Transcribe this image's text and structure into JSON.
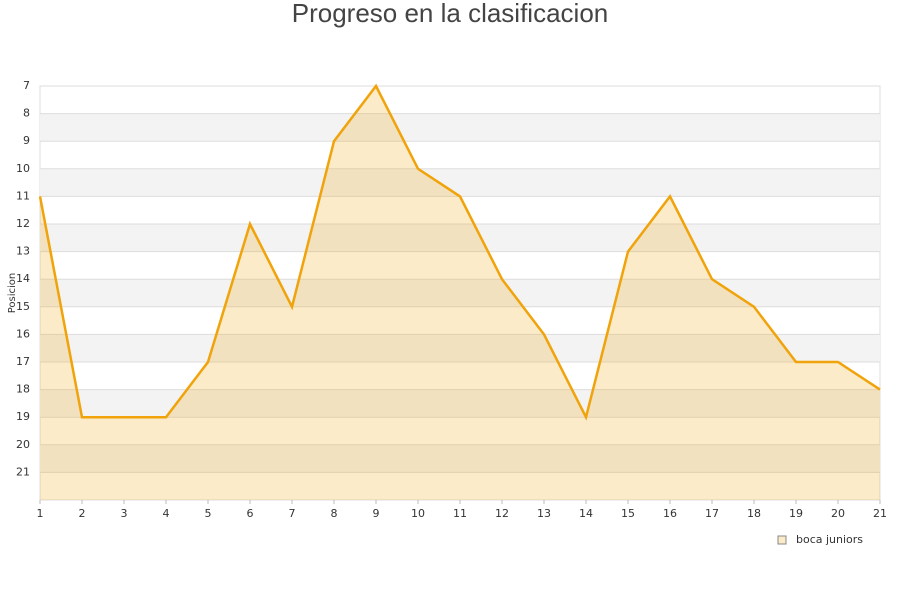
{
  "chart_data": {
    "type": "area",
    "title": "Progreso en la clasificacion",
    "y_label": "Posicion",
    "x": [
      1,
      2,
      3,
      4,
      5,
      6,
      7,
      8,
      9,
      10,
      11,
      12,
      13,
      14,
      15,
      16,
      17,
      18,
      19,
      20,
      21
    ],
    "xlim": [
      1,
      21
    ],
    "xticks": [
      1,
      2,
      3,
      4,
      5,
      6,
      7,
      8,
      9,
      10,
      11,
      12,
      13,
      14,
      15,
      16,
      17,
      18,
      19,
      20,
      21
    ],
    "ylim": [
      22,
      7
    ],
    "yticks": [
      7,
      8,
      9,
      10,
      11,
      12,
      13,
      14,
      15,
      16,
      17,
      18,
      19,
      20,
      21
    ],
    "grid": true,
    "legend": "bottom-right",
    "series": [
      {
        "name": "boca juniors",
        "color": "#f0a30a",
        "values": [
          11,
          19,
          19,
          19,
          17,
          12,
          15,
          9,
          7,
          10,
          11,
          14,
          16,
          19,
          13,
          11,
          14,
          15,
          17,
          17,
          18
        ]
      }
    ]
  }
}
